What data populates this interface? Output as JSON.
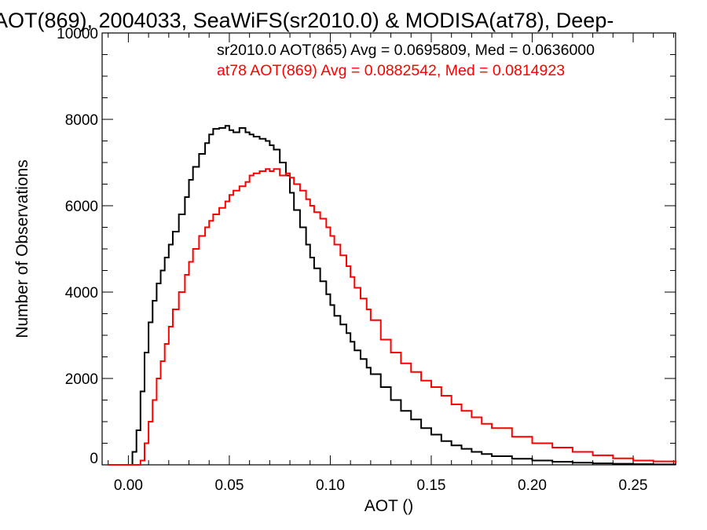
{
  "chart_data": {
    "type": "line",
    "step": true,
    "title": "AOT(869), 2004033, SeaWiFS(sr2010.0) & MODISA(at78), Deep-",
    "xlabel": "AOT ()",
    "ylabel": "Number of Observations",
    "xlim": [
      -0.013,
      0.271
    ],
    "ylim": [
      0,
      10000
    ],
    "xticks": [
      0.0,
      0.05,
      0.1,
      0.15,
      0.2,
      0.25
    ],
    "xtick_labels": [
      "0.00",
      "0.05",
      "0.10",
      "0.15",
      "0.20",
      "0.25"
    ],
    "yticks": [
      0,
      2000,
      4000,
      6000,
      8000,
      10000
    ],
    "ytick_labels": [
      "0",
      "2000",
      "4000",
      "6000",
      "8000",
      "10000"
    ],
    "grid": false,
    "legend": "top-right",
    "series": [
      {
        "color": "#000000",
        "annotation": "sr2010.0 AOT(865) Avg = 0.0695809, Med = 0.0636000",
        "x": [
          -0.01,
          0.0,
          0.002,
          0.004,
          0.006,
          0.008,
          0.01,
          0.012,
          0.014,
          0.016,
          0.018,
          0.02,
          0.022,
          0.025,
          0.028,
          0.03,
          0.032,
          0.035,
          0.038,
          0.04,
          0.042,
          0.045,
          0.048,
          0.05,
          0.052,
          0.055,
          0.058,
          0.06,
          0.062,
          0.065,
          0.068,
          0.07,
          0.072,
          0.075,
          0.078,
          0.08,
          0.082,
          0.085,
          0.088,
          0.09,
          0.092,
          0.095,
          0.098,
          0.1,
          0.102,
          0.105,
          0.108,
          0.11,
          0.112,
          0.115,
          0.118,
          0.12,
          0.125,
          0.13,
          0.135,
          0.14,
          0.145,
          0.15,
          0.155,
          0.16,
          0.165,
          0.17,
          0.175,
          0.18,
          0.19,
          0.2,
          0.21,
          0.22,
          0.23,
          0.24,
          0.25,
          0.26,
          0.271
        ],
        "values": [
          0,
          0,
          300,
          800,
          1700,
          2600,
          3300,
          3800,
          4200,
          4500,
          4800,
          5100,
          5400,
          5800,
          6200,
          6600,
          6900,
          7200,
          7450,
          7650,
          7780,
          7800,
          7850,
          7750,
          7700,
          7800,
          7700,
          7650,
          7600,
          7550,
          7500,
          7400,
          7300,
          7000,
          6700,
          6300,
          5900,
          5500,
          5100,
          4800,
          4550,
          4250,
          3950,
          3700,
          3450,
          3250,
          3050,
          2850,
          2650,
          2450,
          2250,
          2100,
          1800,
          1500,
          1250,
          1050,
          850,
          700,
          550,
          450,
          370,
          300,
          250,
          200,
          140,
          100,
          70,
          50,
          35,
          25,
          15,
          10,
          5
        ]
      },
      {
        "color": "#ff0000",
        "annotation": "at78 AOT(869) Avg = 0.0882542, Med = 0.0814923",
        "x": [
          -0.01,
          0.0,
          0.004,
          0.006,
          0.008,
          0.01,
          0.012,
          0.014,
          0.016,
          0.018,
          0.02,
          0.022,
          0.025,
          0.028,
          0.03,
          0.032,
          0.035,
          0.038,
          0.04,
          0.042,
          0.045,
          0.048,
          0.05,
          0.052,
          0.055,
          0.058,
          0.06,
          0.062,
          0.065,
          0.068,
          0.07,
          0.072,
          0.075,
          0.078,
          0.08,
          0.082,
          0.085,
          0.088,
          0.09,
          0.092,
          0.095,
          0.098,
          0.1,
          0.102,
          0.105,
          0.108,
          0.11,
          0.112,
          0.115,
          0.118,
          0.12,
          0.125,
          0.13,
          0.135,
          0.14,
          0.145,
          0.15,
          0.155,
          0.16,
          0.165,
          0.17,
          0.175,
          0.18,
          0.19,
          0.2,
          0.21,
          0.22,
          0.23,
          0.24,
          0.25,
          0.26,
          0.271
        ],
        "values": [
          0,
          0,
          0,
          100,
          500,
          1000,
          1500,
          2000,
          2400,
          2800,
          3200,
          3600,
          4000,
          4400,
          4700,
          5000,
          5300,
          5500,
          5650,
          5800,
          5950,
          6100,
          6250,
          6350,
          6450,
          6550,
          6700,
          6750,
          6800,
          6850,
          6800,
          6850,
          6700,
          6750,
          6650,
          6500,
          6350,
          6150,
          6000,
          5850,
          5700,
          5500,
          5300,
          5100,
          4850,
          4600,
          4350,
          4100,
          3850,
          3600,
          3350,
          2900,
          2600,
          2350,
          2150,
          1950,
          1800,
          1600,
          1400,
          1250,
          1100,
          950,
          850,
          650,
          500,
          400,
          300,
          220,
          150,
          100,
          80,
          50
        ]
      }
    ]
  }
}
